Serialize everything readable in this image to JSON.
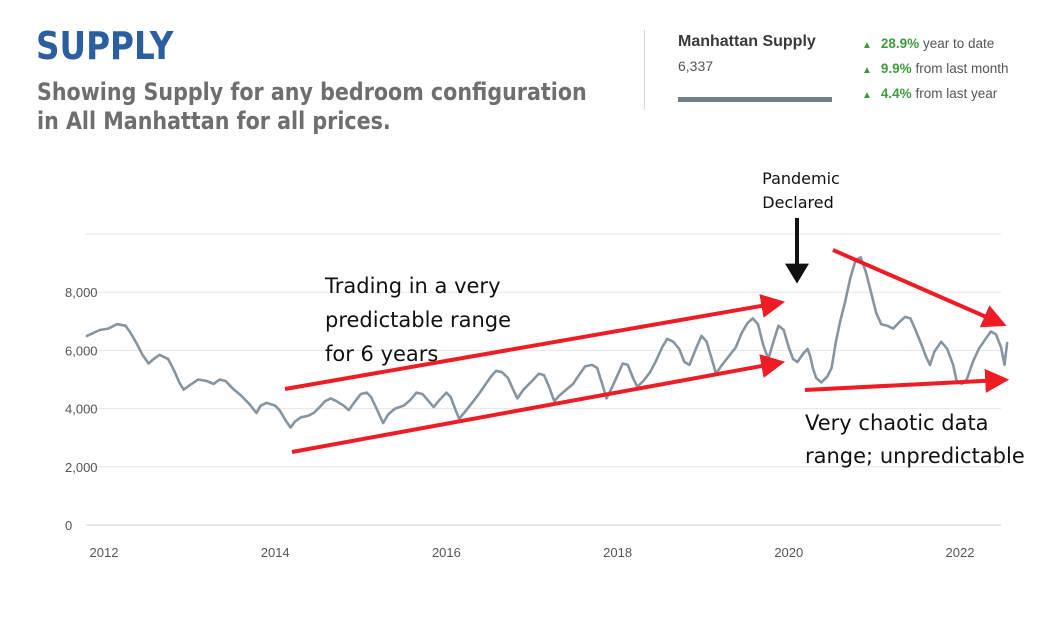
{
  "header": {
    "title": "SUPPLY",
    "subtitle": "Showing Supply for any bedroom configuration in All Manhattan for all prices."
  },
  "summary": {
    "label": "Manhattan Supply",
    "value": "6,337",
    "changes": [
      {
        "pct": "28.9%",
        "text": "year to date"
      },
      {
        "pct": "9.9%",
        "text": "from last month"
      },
      {
        "pct": "4.4%",
        "text": "from last year"
      }
    ],
    "accent_color": "#3f9b3f"
  },
  "annotations": {
    "range_lines": [
      "Trading in a very",
      "predictable range",
      "for 6 years"
    ],
    "pandemic_lines": [
      "Pandemic",
      "Declared"
    ],
    "chaotic_lines": [
      "Very chaotic data",
      "range; unpredictable"
    ],
    "arrow_color": "#ee1c24"
  },
  "chart_data": {
    "type": "line",
    "x_ticks": [
      "2012",
      "2014",
      "2016",
      "2018",
      "2020",
      "2022"
    ],
    "y_ticks": [
      "0",
      "2,000",
      "4,000",
      "6,000",
      "8,000"
    ],
    "ylim": [
      0,
      10000
    ],
    "xlim": [
      2011.8,
      2022.55
    ],
    "grid": true,
    "line_color": "#8795a1",
    "series": [
      {
        "points": [
          [
            2011.8,
            6500
          ],
          [
            2011.95,
            6700
          ],
          [
            2012.05,
            6750
          ],
          [
            2012.15,
            6900
          ],
          [
            2012.25,
            6850
          ],
          [
            2012.3,
            6650
          ],
          [
            2012.38,
            6250
          ],
          [
            2012.45,
            5850
          ],
          [
            2012.52,
            5550
          ],
          [
            2012.58,
            5700
          ],
          [
            2012.65,
            5850
          ],
          [
            2012.75,
            5700
          ],
          [
            2012.82,
            5300
          ],
          [
            2012.88,
            4900
          ],
          [
            2012.93,
            4650
          ],
          [
            2013.0,
            4800
          ],
          [
            2013.1,
            5000
          ],
          [
            2013.2,
            4950
          ],
          [
            2013.28,
            4850
          ],
          [
            2013.35,
            5000
          ],
          [
            2013.42,
            4950
          ],
          [
            2013.5,
            4700
          ],
          [
            2013.6,
            4450
          ],
          [
            2013.7,
            4150
          ],
          [
            2013.78,
            3850
          ],
          [
            2013.83,
            4100
          ],
          [
            2013.9,
            4200
          ],
          [
            2014.0,
            4100
          ],
          [
            2014.05,
            3950
          ],
          [
            2014.12,
            3600
          ],
          [
            2014.18,
            3350
          ],
          [
            2014.23,
            3550
          ],
          [
            2014.3,
            3700
          ],
          [
            2014.38,
            3750
          ],
          [
            2014.45,
            3850
          ],
          [
            2014.52,
            4050
          ],
          [
            2014.58,
            4250
          ],
          [
            2014.65,
            4350
          ],
          [
            2014.72,
            4250
          ],
          [
            2014.8,
            4100
          ],
          [
            2014.86,
            3950
          ],
          [
            2014.92,
            4200
          ],
          [
            2015.0,
            4500
          ],
          [
            2015.07,
            4550
          ],
          [
            2015.12,
            4400
          ],
          [
            2015.2,
            3900
          ],
          [
            2015.26,
            3500
          ],
          [
            2015.32,
            3800
          ],
          [
            2015.4,
            4000
          ],
          [
            2015.5,
            4100
          ],
          [
            2015.58,
            4300
          ],
          [
            2015.65,
            4550
          ],
          [
            2015.72,
            4500
          ],
          [
            2015.78,
            4300
          ],
          [
            2015.85,
            4050
          ],
          [
            2015.92,
            4300
          ],
          [
            2016.0,
            4550
          ],
          [
            2016.05,
            4400
          ],
          [
            2016.1,
            4000
          ],
          [
            2016.15,
            3650
          ],
          [
            2016.22,
            3900
          ],
          [
            2016.3,
            4200
          ],
          [
            2016.38,
            4500
          ],
          [
            2016.45,
            4800
          ],
          [
            2016.52,
            5100
          ],
          [
            2016.58,
            5300
          ],
          [
            2016.65,
            5250
          ],
          [
            2016.72,
            5050
          ],
          [
            2016.78,
            4650
          ],
          [
            2016.83,
            4350
          ],
          [
            2016.9,
            4650
          ],
          [
            2017.0,
            4950
          ],
          [
            2017.08,
            5200
          ],
          [
            2017.14,
            5150
          ],
          [
            2017.2,
            4750
          ],
          [
            2017.26,
            4250
          ],
          [
            2017.32,
            4450
          ],
          [
            2017.4,
            4650
          ],
          [
            2017.48,
            4850
          ],
          [
            2017.56,
            5200
          ],
          [
            2017.62,
            5450
          ],
          [
            2017.7,
            5500
          ],
          [
            2017.76,
            5400
          ],
          [
            2017.82,
            4850
          ],
          [
            2017.87,
            4350
          ],
          [
            2017.93,
            4700
          ],
          [
            2018.0,
            5150
          ],
          [
            2018.06,
            5550
          ],
          [
            2018.12,
            5500
          ],
          [
            2018.18,
            5050
          ],
          [
            2018.23,
            4750
          ],
          [
            2018.3,
            4950
          ],
          [
            2018.38,
            5250
          ],
          [
            2018.45,
            5650
          ],
          [
            2018.52,
            6100
          ],
          [
            2018.58,
            6400
          ],
          [
            2018.65,
            6300
          ],
          [
            2018.72,
            6050
          ],
          [
            2018.78,
            5600
          ],
          [
            2018.84,
            5500
          ],
          [
            2018.92,
            6100
          ],
          [
            2018.98,
            6500
          ],
          [
            2019.04,
            6300
          ],
          [
            2019.1,
            5700
          ],
          [
            2019.15,
            5200
          ],
          [
            2019.22,
            5500
          ],
          [
            2019.3,
            5800
          ],
          [
            2019.38,
            6100
          ],
          [
            2019.45,
            6600
          ],
          [
            2019.52,
            6950
          ],
          [
            2019.58,
            7100
          ],
          [
            2019.64,
            6900
          ],
          [
            2019.7,
            6200
          ],
          [
            2019.76,
            5700
          ],
          [
            2019.82,
            6300
          ],
          [
            2019.88,
            6850
          ],
          [
            2019.94,
            6700
          ],
          [
            2020.0,
            6100
          ],
          [
            2020.05,
            5700
          ],
          [
            2020.1,
            5600
          ],
          [
            2020.17,
            5900
          ],
          [
            2020.22,
            6050
          ],
          [
            2020.25,
            5800
          ],
          [
            2020.28,
            5400
          ],
          [
            2020.32,
            5050
          ],
          [
            2020.38,
            4900
          ],
          [
            2020.45,
            5100
          ],
          [
            2020.5,
            5400
          ],
          [
            2020.55,
            6300
          ],
          [
            2020.6,
            7000
          ],
          [
            2020.66,
            7700
          ],
          [
            2020.72,
            8500
          ],
          [
            2020.78,
            9100
          ],
          [
            2020.84,
            9200
          ],
          [
            2020.9,
            8700
          ],
          [
            2020.96,
            8000
          ],
          [
            2021.02,
            7300
          ],
          [
            2021.08,
            6900
          ],
          [
            2021.15,
            6850
          ],
          [
            2021.22,
            6750
          ],
          [
            2021.3,
            7000
          ],
          [
            2021.36,
            7150
          ],
          [
            2021.42,
            7100
          ],
          [
            2021.48,
            6700
          ],
          [
            2021.55,
            6200
          ],
          [
            2021.6,
            5800
          ],
          [
            2021.65,
            5500
          ],
          [
            2021.7,
            5950
          ],
          [
            2021.78,
            6300
          ],
          [
            2021.85,
            6050
          ],
          [
            2021.92,
            5500
          ],
          [
            2021.96,
            4950
          ],
          [
            2022.02,
            4850
          ],
          [
            2022.08,
            5000
          ],
          [
            2022.15,
            5600
          ],
          [
            2022.22,
            6050
          ],
          [
            2022.3,
            6400
          ],
          [
            2022.36,
            6650
          ],
          [
            2022.42,
            6550
          ],
          [
            2022.48,
            6100
          ],
          [
            2022.52,
            5500
          ],
          [
            2022.55,
            6250
          ]
        ]
      }
    ]
  }
}
